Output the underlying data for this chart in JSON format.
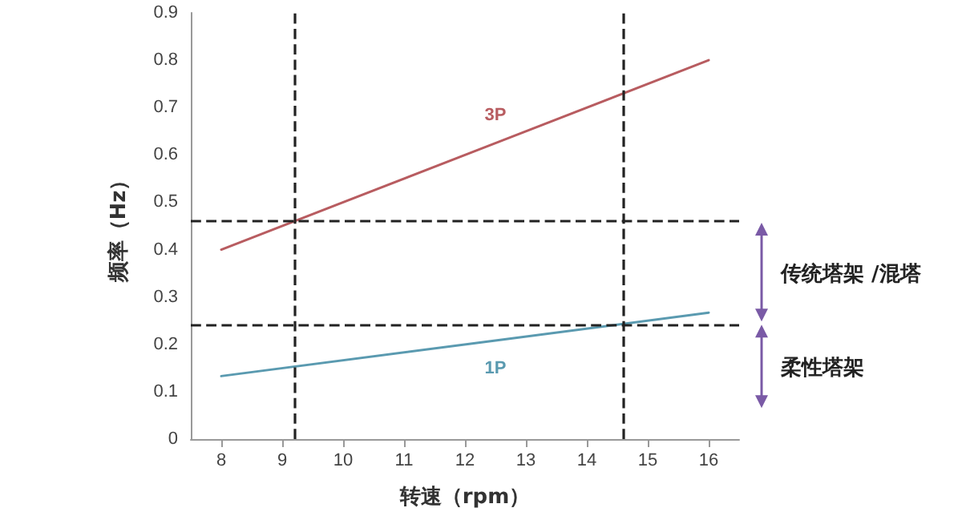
{
  "chart_data": {
    "type": "line",
    "xlabel": "转速（rpm）",
    "ylabel": "频率（Hz）",
    "xlim": [
      7.5,
      16.5
    ],
    "xticks": [
      8,
      9,
      10,
      11,
      12,
      13,
      14,
      15,
      16
    ],
    "ylim": [
      0,
      0.9
    ],
    "yticks": [
      0,
      0.1,
      0.2,
      0.3,
      0.4,
      0.5,
      0.6,
      0.7,
      0.8,
      0.9
    ],
    "grid": false,
    "legend": false,
    "marker": "none",
    "line_style": "solid",
    "series": [
      {
        "name": "3P",
        "color": "#b85c60",
        "x": [
          8,
          12.5,
          16
        ],
        "values": [
          0.4,
          0.625,
          0.8
        ]
      },
      {
        "name": "1P",
        "color": "#5a9ab0",
        "x": [
          8,
          12.5,
          16
        ],
        "values": [
          0.133,
          0.208,
          0.267
        ]
      }
    ],
    "ref_lines": [
      {
        "axis": "x",
        "value": 9.2,
        "color": "#222222",
        "line_style": "dashed"
      },
      {
        "axis": "x",
        "value": 14.6,
        "color": "#222222",
        "line_style": "dashed"
      },
      {
        "axis": "y",
        "value": 0.46,
        "color": "#222222",
        "line_style": "dashed"
      },
      {
        "axis": "y",
        "value": 0.245,
        "color": "#222222",
        "line_style": "dashed"
      }
    ],
    "annotations": [
      "传统塔架 /混塔",
      "柔性塔架"
    ]
  }
}
